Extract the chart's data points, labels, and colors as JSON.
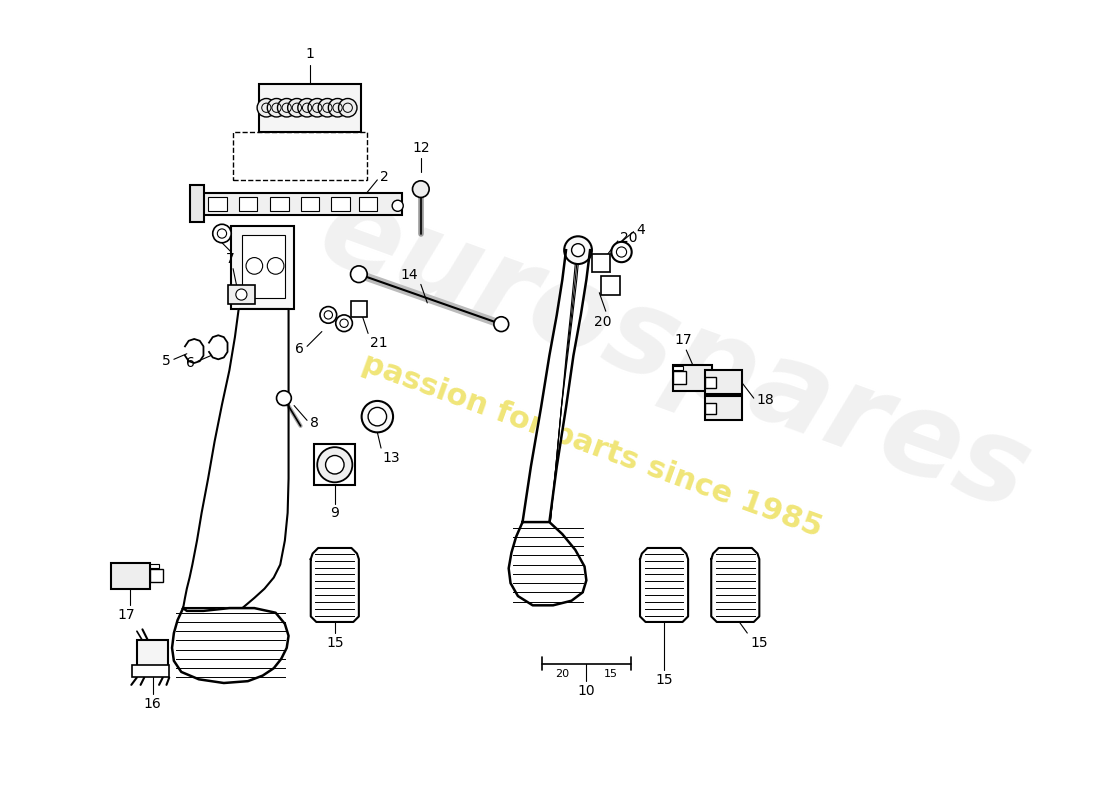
{
  "background_color": "#ffffff",
  "line_color": "#000000",
  "fig_width": 11.0,
  "fig_height": 8.0,
  "dpi": 100,
  "watermark1": "eurospares",
  "watermark2": "passion for parts since 1985"
}
